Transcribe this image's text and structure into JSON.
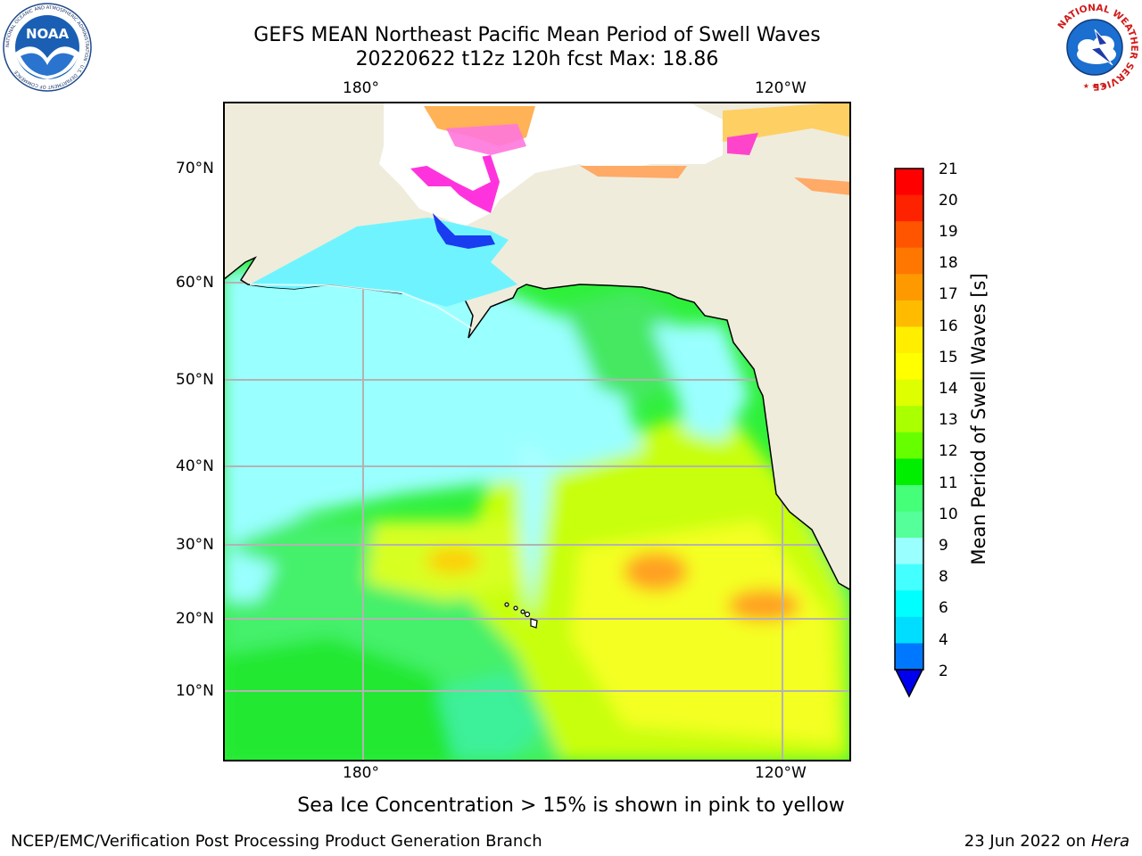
{
  "header": {
    "title_line1": "GEFS MEAN Northeast Pacific Mean Period of Swell Waves",
    "title_line2": "20220622 t12z 120h fcst   Max: 18.86"
  },
  "logos": {
    "left": {
      "icon": "noaa-logo",
      "text": "NOAA",
      "ring_text": "NATIONAL OCEANIC AND ATMOSPHERIC ADMINISTRATION · U.S. DEPARTMENT OF COMMERCE"
    },
    "right": {
      "icon": "nws-logo",
      "ring_text": "NATIONAL WEATHER SERVICE"
    }
  },
  "map": {
    "top_lon_labels": [
      "180°",
      "120°W"
    ],
    "bottom_lon_labels": [
      "180°",
      "120°W"
    ],
    "lat_labels": [
      "70°N",
      "60°N",
      "50°N",
      "40°N",
      "30°N",
      "20°N",
      "10°N"
    ],
    "land_color": "#efecdc",
    "ocean_dominant_colors": [
      "#99ffff",
      "#55ff88",
      "#00ee00",
      "#aaff00",
      "#ffff00"
    ],
    "features": [
      "Alaska",
      "Bering Sea",
      "Hawaii",
      "North America west coast",
      "sea ice (pink to yellow)"
    ]
  },
  "colorbar": {
    "title": "Mean Period of Swell Waves [s]",
    "tick_labels": [
      "21",
      "20",
      "19",
      "18",
      "17",
      "16",
      "15",
      "14",
      "13",
      "12",
      "11",
      "10",
      "9",
      "8",
      "6",
      "4",
      "2"
    ],
    "colors_top_to_bottom": [
      "#ff0000",
      "#ff2200",
      "#ff5500",
      "#ff7700",
      "#ff9900",
      "#ffbb00",
      "#ffee00",
      "#ffff00",
      "#ddff00",
      "#aaff00",
      "#66ff00",
      "#00ee00",
      "#44ff77",
      "#55ff99",
      "#99ffff",
      "#44ffff",
      "#00ffff",
      "#00ddff",
      "#0077ff"
    ],
    "extend_color": "#0000ee"
  },
  "footer": {
    "note": "Sea Ice Concentration > 15% is shown in pink to yellow",
    "left": "NCEP/EMC/Verification Post Processing Product Generation Branch",
    "right_date": "23 Jun 2022 on",
    "right_host": "Hera"
  }
}
